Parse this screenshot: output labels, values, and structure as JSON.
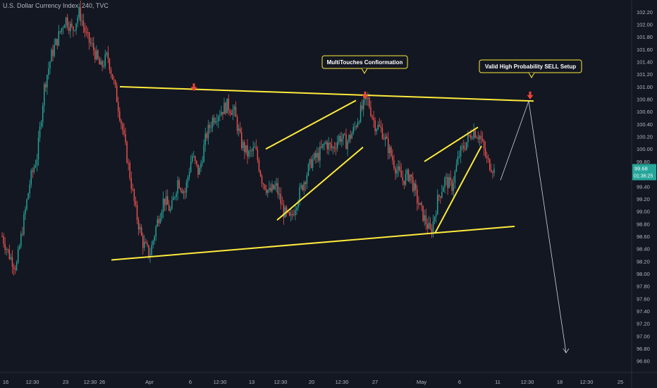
{
  "title": "U.S. Dollar Currency Index, 240, TVC",
  "annotations": {
    "multi_touch": "MultiTouches Confiormation",
    "sell_setup": "Valid High Probability SELL Setup"
  },
  "price_label": {
    "value": "99.68",
    "countdown": "01:36:25"
  },
  "colors": {
    "background": "#131722",
    "up": "#26a69a",
    "down": "#ef5350",
    "trendline": "#ffeb3b",
    "arrow": "#d1d4dc",
    "axis_text": "#b2b5be",
    "marker": "#f44336"
  },
  "chart_data": {
    "type": "candlestick",
    "title": "U.S. Dollar Currency Index, 240, TVC",
    "x_tick_labels": [
      "16",
      "12:30",
      "23",
      "12:30",
      "26",
      "Apr",
      "6",
      "12:30",
      "13",
      "12:30",
      "20",
      "12:30",
      "27",
      "May",
      "6",
      "11",
      "12:30",
      "18",
      "12:30",
      "25"
    ],
    "y_ticks": [
      "102.20",
      "102.00",
      "101.80",
      "101.60",
      "101.40",
      "101.20",
      "101.00",
      "100.80",
      "100.60",
      "100.40",
      "100.20",
      "100.00",
      "99.80",
      "99.60",
      "99.40",
      "99.20",
      "99.00",
      "98.80",
      "98.60",
      "98.40",
      "98.20",
      "98.00",
      "97.80",
      "97.60",
      "97.40",
      "97.20",
      "97.00",
      "96.80",
      "96.60"
    ],
    "y_range": [
      96.54,
      102.3
    ],
    "last_price": 99.68,
    "price_path": [
      98.6,
      98.3,
      98.1,
      98.8,
      99.5,
      99.9,
      101.0,
      101.5,
      101.8,
      102.1,
      101.9,
      102.2,
      101.8,
      101.6,
      101.3,
      101.5,
      101.0,
      100.4,
      99.7,
      99.0,
      98.5,
      98.3,
      98.8,
      99.2,
      99.0,
      99.5,
      99.3,
      99.9,
      99.6,
      100.2,
      100.5,
      100.6,
      100.7,
      100.6,
      100.1,
      99.9,
      100.0,
      99.5,
      99.3,
      99.4,
      99.0,
      98.85,
      99.2,
      99.5,
      99.8,
      99.9,
      100.1,
      100.0,
      100.2,
      100.1,
      100.3,
      100.6,
      100.8,
      100.4,
      100.3,
      100.0,
      99.7,
      99.5,
      99.6,
      99.2,
      98.9,
      98.65,
      99.2,
      99.5,
      99.4,
      99.9,
      100.1,
      100.3,
      100.2,
      99.8,
      99.68
    ],
    "trendlines": [
      {
        "from": [
          "26",
          101.0
        ],
        "to": [
          "12:30",
          100.77
        ]
      },
      {
        "from": [
          "26",
          98.22
        ],
        "to": [
          "11",
          98.76
        ]
      },
      {
        "from": [
          "12:30",
          100.0
        ],
        "to": [
          "27",
          100.78
        ]
      },
      {
        "from": [
          "12:30",
          98.86
        ],
        "to": [
          "27",
          100.03
        ]
      },
      {
        "from": [
          "May",
          99.8
        ],
        "to": [
          "6",
          100.35
        ]
      },
      {
        "from": [
          "May",
          98.65
        ],
        "to": [
          "6",
          100.05
        ]
      }
    ],
    "projection": [
      99.5,
      100.77,
      96.73
    ],
    "markers": [
      100.95,
      100.82,
      100.82
    ]
  }
}
